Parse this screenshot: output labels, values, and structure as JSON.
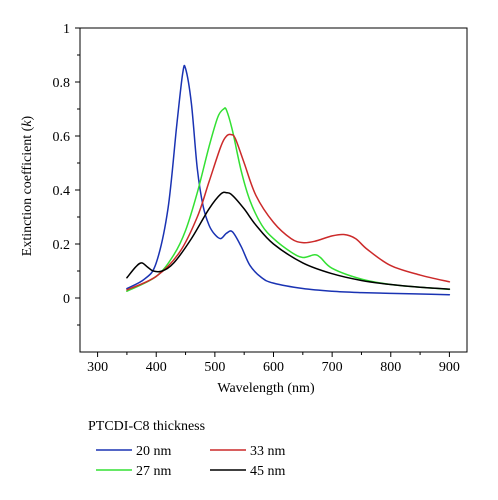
{
  "chart_data": {
    "type": "line",
    "xlabel": "Wavelength (nm)",
    "ylabel_main": "Extinction coefficient (",
    "ylabel_italic": "k",
    "ylabel_close": ")",
    "xlim": [
      270,
      930
    ],
    "ylim": [
      -0.2,
      1.0
    ],
    "xticks": [
      300,
      400,
      500,
      600,
      700,
      800,
      900
    ],
    "yticks": [
      0,
      0.2,
      0.4,
      0.6,
      0.8,
      1
    ],
    "xtick_labels": [
      "300",
      "400",
      "500",
      "600",
      "700",
      "800",
      "900"
    ],
    "ytick_labels": [
      "0",
      "0.2",
      "0.4",
      "0.6",
      "0.8",
      "1"
    ],
    "grid": false,
    "legend_title": "PTCDI-C8 thickness",
    "legend_position": "below-plot",
    "series": [
      {
        "name": "20 nm",
        "color": "#1a33b3",
        "x": [
          350,
          380,
          400,
          420,
          435,
          445,
          450,
          460,
          470,
          480,
          490,
          500,
          510,
          520,
          530,
          545,
          560,
          580,
          600,
          650,
          700,
          750,
          800,
          850,
          900
        ],
        "y": [
          0.035,
          0.07,
          0.13,
          0.33,
          0.64,
          0.83,
          0.85,
          0.72,
          0.48,
          0.34,
          0.27,
          0.235,
          0.22,
          0.24,
          0.245,
          0.19,
          0.12,
          0.075,
          0.055,
          0.035,
          0.025,
          0.02,
          0.017,
          0.015,
          0.012
        ]
      },
      {
        "name": "27 nm",
        "color": "#33e033",
        "x": [
          350,
          400,
          430,
          450,
          470,
          490,
          505,
          515,
          520,
          530,
          545,
          560,
          580,
          600,
          630,
          650,
          670,
          680,
          700,
          750,
          800,
          850,
          900
        ],
        "y": [
          0.025,
          0.08,
          0.16,
          0.25,
          0.39,
          0.56,
          0.67,
          0.7,
          0.695,
          0.62,
          0.47,
          0.36,
          0.27,
          0.22,
          0.17,
          0.15,
          0.16,
          0.15,
          0.11,
          0.07,
          0.05,
          0.04,
          0.032
        ]
      },
      {
        "name": "33 nm",
        "color": "#cc2a2a",
        "x": [
          350,
          400,
          440,
          470,
          490,
          510,
          520,
          528,
          535,
          550,
          570,
          600,
          630,
          650,
          670,
          700,
          720,
          740,
          760,
          800,
          850,
          900
        ],
        "y": [
          0.03,
          0.08,
          0.17,
          0.3,
          0.43,
          0.56,
          0.6,
          0.605,
          0.59,
          0.5,
          0.38,
          0.28,
          0.22,
          0.205,
          0.21,
          0.23,
          0.235,
          0.22,
          0.18,
          0.12,
          0.085,
          0.06
        ]
      },
      {
        "name": "45 nm",
        "color": "#000000",
        "x": [
          350,
          365,
          375,
          385,
          395,
          410,
          430,
          460,
          490,
          510,
          520,
          530,
          550,
          570,
          600,
          650,
          700,
          750,
          800,
          850,
          900
        ],
        "y": [
          0.075,
          0.115,
          0.13,
          0.115,
          0.1,
          0.1,
          0.13,
          0.22,
          0.33,
          0.385,
          0.39,
          0.38,
          0.33,
          0.27,
          0.2,
          0.13,
          0.09,
          0.065,
          0.05,
          0.04,
          0.033
        ]
      }
    ]
  }
}
